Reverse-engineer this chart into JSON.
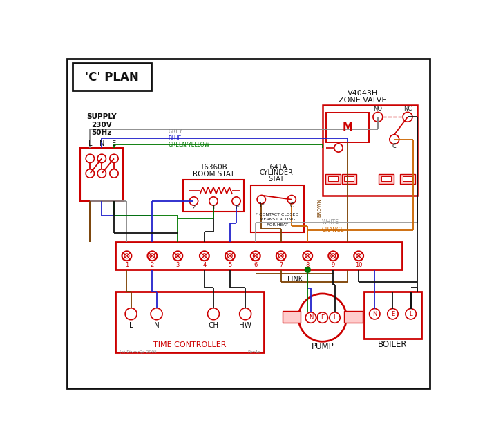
{
  "title": "'C' PLAN",
  "bg": "#ffffff",
  "red": "#cc0000",
  "blue": "#2222cc",
  "green": "#007700",
  "brown": "#7B3F00",
  "grey": "#888888",
  "orange": "#CC6600",
  "black": "#111111",
  "pink": "#ffcccc",
  "white_wire": "#999999",
  "supply_lines": [
    "SUPPLY",
    "230V",
    "50Hz"
  ],
  "lne": [
    "L",
    "N",
    "E"
  ],
  "zone_valve_lines": [
    "V4043H",
    "ZONE VALVE"
  ],
  "room_stat_lines": [
    "T6360B",
    "ROOM STAT"
  ],
  "cyl_stat_lines": [
    "L641A",
    "CYLINDER",
    "STAT"
  ],
  "contact_note": [
    "* CONTACT CLOSED",
    "MEANS CALLING",
    "FOR HEAT"
  ],
  "terminals": [
    "1",
    "2",
    "3",
    "4",
    "5",
    "6",
    "7",
    "8",
    "9",
    "10"
  ],
  "link_label": "LINK",
  "tc_label": "TIME CONTROLLER",
  "tc_terminals": [
    "L",
    "N",
    "CH",
    "HW"
  ],
  "pump_label": "PUMP",
  "boiler_label": "BOILER",
  "nel": [
    "N",
    "E",
    "L"
  ],
  "copyright": "(c) DivvyQz 2005",
  "rev": "Rev1d",
  "wire_labels": [
    "GREY",
    "BLUE",
    "GREEN/YELLOW",
    "BROWN",
    "WHITE",
    "ORANGE"
  ],
  "no_label": "NO",
  "nc_label": "NC",
  "c_label": "C",
  "m_label": "M"
}
